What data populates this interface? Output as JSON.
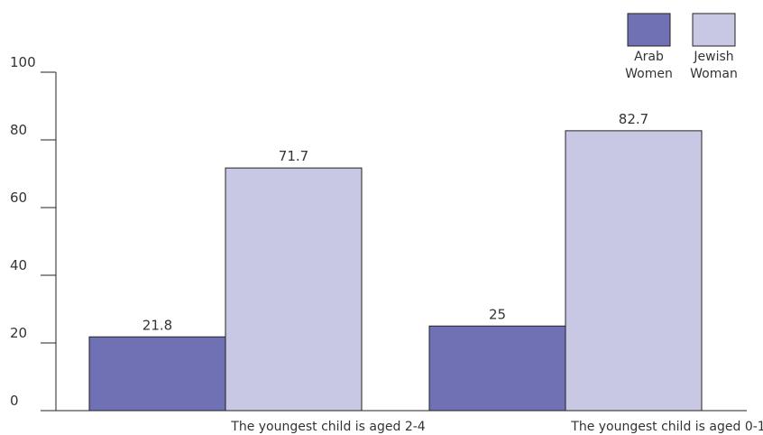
{
  "chart_data": {
    "type": "bar",
    "categories": [
      "The youngest child is aged 2-4",
      "The youngest child is aged 0-1"
    ],
    "series": [
      {
        "name": "Arab Women",
        "legend_lines": [
          "Arab",
          "Women"
        ],
        "values": [
          21.8,
          25
        ],
        "color": "#7070b4"
      },
      {
        "name": "Jewish Woman",
        "legend_lines": [
          "Jewish",
          "Woman"
        ],
        "values": [
          71.7,
          82.7
        ],
        "color": "#c8c8e4"
      }
    ],
    "value_labels": [
      [
        "21.8",
        "25"
      ],
      [
        "71.7",
        "82.7"
      ]
    ],
    "ylim": [
      0,
      100
    ],
    "yticks": [
      0,
      20,
      40,
      60,
      80,
      100
    ],
    "grid": false,
    "legend_position": "top-right",
    "title": "",
    "xlabel": "",
    "ylabel": ""
  }
}
